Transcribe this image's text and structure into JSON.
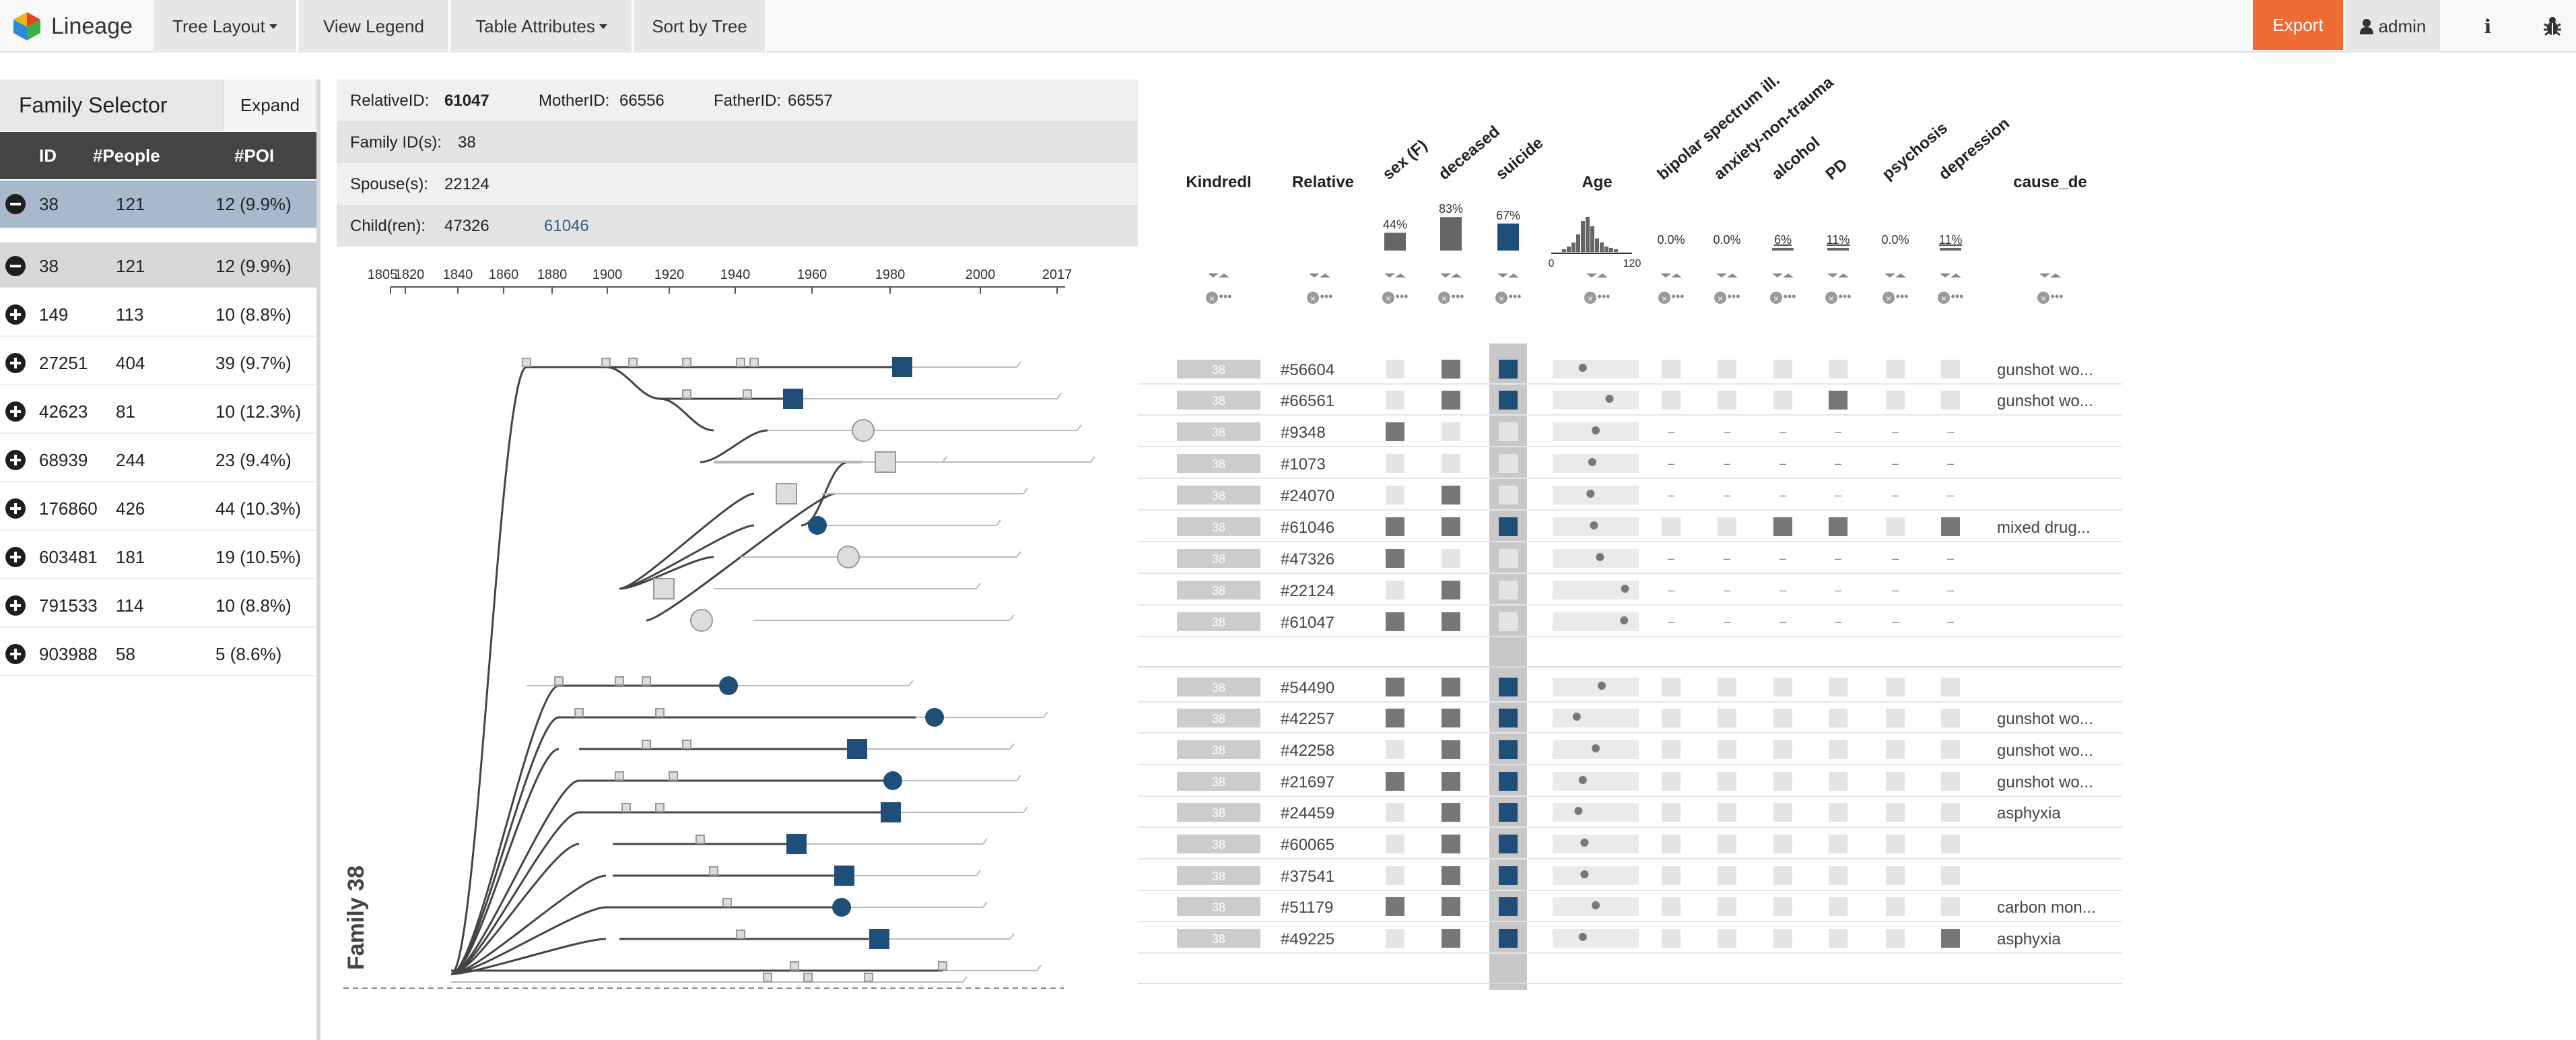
{
  "nav": {
    "brand": "Lineage",
    "tree_layout": "Tree Layout",
    "view_legend": "View Legend",
    "table_attributes": "Table Attributes",
    "sort_by_tree": "Sort by Tree",
    "export": "Export",
    "admin": "admin",
    "info": "i"
  },
  "colors": {
    "accent": "#ef6c35",
    "poi": "#1f4e79",
    "header": "#444444",
    "selected": "#a7b9ca"
  },
  "selector": {
    "title": "Family Selector",
    "expand": "Expand",
    "cols": {
      "id": "ID",
      "people": "#People",
      "poi": "#POI"
    },
    "selected": {
      "id": "38",
      "people": "121",
      "poi": "12 (9.9%)"
    },
    "rows": [
      {
        "id": "38",
        "people": "121",
        "poi": "12 (9.9%)",
        "icon": "minus"
      },
      {
        "id": "149",
        "people": "113",
        "poi": "10 (8.8%)",
        "icon": "plus"
      },
      {
        "id": "27251",
        "people": "404",
        "poi": "39 (9.7%)",
        "icon": "plus"
      },
      {
        "id": "42623",
        "people": "81",
        "poi": "10 (12.3%)",
        "icon": "plus"
      },
      {
        "id": "68939",
        "people": "244",
        "poi": "23 (9.4%)",
        "icon": "plus"
      },
      {
        "id": "176860",
        "people": "426",
        "poi": "44 (10.3%)",
        "icon": "plus"
      },
      {
        "id": "603481",
        "people": "181",
        "poi": "19 (10.5%)",
        "icon": "plus"
      },
      {
        "id": "791533",
        "people": "114",
        "poi": "10 (8.8%)",
        "icon": "plus"
      },
      {
        "id": "903988",
        "people": "58",
        "poi": "5 (8.6%)",
        "icon": "plus"
      }
    ]
  },
  "info": {
    "relative_label": "RelativeID:",
    "relative": "61047",
    "mother_label": "MotherID:",
    "mother": "66556",
    "father_label": "FatherID:",
    "father": "66557",
    "family_label": "Family ID(s):",
    "family": "38",
    "spouse_label": "Spouse(s):",
    "spouse": "22124",
    "children_label": "Child(ren):",
    "child1": "47326",
    "child2": "61046"
  },
  "timeline": {
    "ticks": [
      "1805",
      "1820",
      "1840",
      "1860",
      "1880",
      "1900",
      "1920",
      "1940",
      "1960",
      "1980",
      "2000",
      "2017"
    ],
    "family_label": "Family 38"
  },
  "table": {
    "headers": [
      "KindredI",
      "Relative",
      "sex (F)",
      "deceased",
      "suicide",
      "Age",
      "bipolar spectrum ill.",
      "anxiety-non-trauma",
      "alcohol",
      "PD",
      "psychosis",
      "depression",
      "cause_de"
    ],
    "summary": {
      "sex": "44%",
      "deceased": "83%",
      "suicide": "67%",
      "bipolar": "0.0%",
      "anxiety": "0.0%",
      "alcohol": "6%",
      "pd": "11%",
      "psychosis": "0.0%",
      "depression": "11%",
      "age_min": "0",
      "age_max": "120"
    },
    "count": "1",
    "kindred": "38",
    "dash": "–",
    "rows": [
      {
        "id": "#56604",
        "sex": 0,
        "dec": 1,
        "sui": 1,
        "age": 0.35,
        "attrs": [
          0,
          0,
          0,
          0,
          0,
          0
        ],
        "cause": "gunshot wo..."
      },
      {
        "id": "#66561",
        "sex": 0,
        "dec": 1,
        "sui": 1,
        "age": 0.66,
        "attrs": [
          0,
          0,
          0,
          1,
          0,
          0
        ],
        "cause": "gunshot wo..."
      },
      {
        "id": "#9348",
        "sex": 1,
        "dec": 0,
        "sui": 0,
        "age": 0.5,
        "attrs": null,
        "cause": ""
      },
      {
        "id": "#1073",
        "sex": 0,
        "dec": 0,
        "sui": 0,
        "age": 0.46,
        "attrs": null,
        "cause": ""
      },
      {
        "id": "#24070",
        "sex": 0,
        "dec": 1,
        "sui": 0,
        "age": 0.44,
        "attrs": null,
        "cause": ""
      },
      {
        "id": "#61046",
        "sex": 1,
        "dec": 1,
        "sui": 1,
        "age": 0.48,
        "attrs": [
          0,
          0,
          1,
          1,
          0,
          1
        ],
        "cause": "mixed drug..."
      },
      {
        "id": "#47326",
        "sex": 1,
        "dec": 0,
        "sui": 0,
        "age": 0.55,
        "attrs": null,
        "cause": ""
      },
      {
        "id": "#22124",
        "sex": 0,
        "dec": 1,
        "sui": 0,
        "age": 0.84,
        "attrs": null,
        "cause": ""
      },
      {
        "id": "#61047",
        "sex": 1,
        "dec": 1,
        "sui": 0,
        "age": 0.83,
        "attrs": null,
        "cause": ""
      },
      {
        "id": "#54490",
        "sex": 1,
        "dec": 1,
        "sui": 1,
        "age": 0.57,
        "attrs": [
          0,
          0,
          0,
          0,
          0,
          0
        ],
        "cause": ""
      },
      {
        "id": "#42257",
        "sex": 1,
        "dec": 1,
        "sui": 1,
        "age": 0.28,
        "attrs": [
          0,
          0,
          0,
          0,
          0,
          0
        ],
        "cause": "gunshot wo..."
      },
      {
        "id": "#42258",
        "sex": 0,
        "dec": 1,
        "sui": 1,
        "age": 0.5,
        "attrs": [
          0,
          0,
          0,
          0,
          0,
          0
        ],
        "cause": "gunshot wo..."
      },
      {
        "id": "#21697",
        "sex": 1,
        "dec": 1,
        "sui": 1,
        "age": 0.35,
        "attrs": [
          0,
          0,
          0,
          0,
          0,
          0
        ],
        "cause": "gunshot wo..."
      },
      {
        "id": "#24459",
        "sex": 0,
        "dec": 1,
        "sui": 1,
        "age": 0.3,
        "attrs": [
          0,
          0,
          0,
          0,
          0,
          0
        ],
        "cause": "asphyxia"
      },
      {
        "id": "#60065",
        "sex": 0,
        "dec": 1,
        "sui": 1,
        "age": 0.37,
        "attrs": [
          0,
          0,
          0,
          0,
          0,
          0
        ],
        "cause": ""
      },
      {
        "id": "#37541",
        "sex": 0,
        "dec": 1,
        "sui": 1,
        "age": 0.37,
        "attrs": [
          0,
          0,
          0,
          0,
          0,
          0
        ],
        "cause": ""
      },
      {
        "id": "#51179",
        "sex": 1,
        "dec": 1,
        "sui": 1,
        "age": 0.5,
        "attrs": [
          0,
          0,
          0,
          0,
          0,
          0
        ],
        "cause": "carbon mon..."
      },
      {
        "id": "#49225",
        "sex": 0,
        "dec": 1,
        "sui": 1,
        "age": 0.35,
        "attrs": [
          0,
          0,
          0,
          0,
          0,
          1
        ],
        "cause": "asphyxia"
      }
    ]
  }
}
